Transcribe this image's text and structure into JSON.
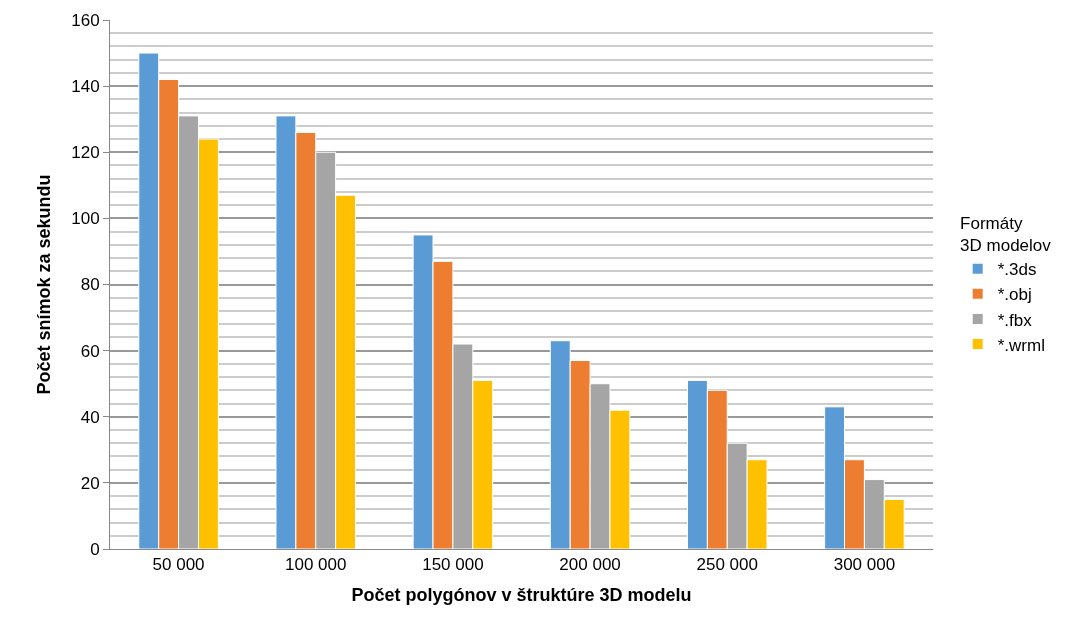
{
  "chart_data": {
    "type": "bar",
    "categories": [
      "50 000",
      "100 000",
      "150 000",
      "200 000",
      "250 000",
      "300 000"
    ],
    "series": [
      {
        "name": "*.3ds",
        "color": "#5b9bd5",
        "values": [
          150,
          131,
          95,
          63,
          51,
          43
        ]
      },
      {
        "name": "*.obj",
        "color": "#ed7d31",
        "values": [
          142,
          126,
          87,
          57,
          48,
          27
        ]
      },
      {
        "name": "*.fbx",
        "color": "#a5a5a5",
        "values": [
          131,
          120,
          62,
          50,
          32,
          21
        ]
      },
      {
        "name": "*.wrml",
        "color": "#ffc000",
        "values": [
          124,
          107,
          51,
          42,
          27,
          15
        ]
      }
    ],
    "xlabel": "Počet polygónov v štruktúre 3D modelu",
    "ylabel": "Počet snímok za sekundu",
    "legend_title": "Formáty 3D modelov",
    "ylim": [
      0,
      160
    ],
    "yticks": [
      0,
      20,
      40,
      60,
      80,
      100,
      120,
      140,
      160
    ],
    "grid": "y",
    "legend": "right"
  }
}
